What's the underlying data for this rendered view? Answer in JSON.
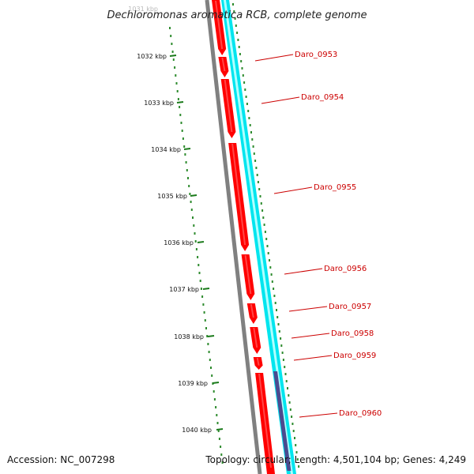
{
  "title": "Dechloromonas aromatica RCB, complete genome",
  "top_partial_label": "1031 kbp",
  "ruler_labels": [
    "1032 kbp",
    "1033 kbp",
    "1034 kbp",
    "1035 kbp",
    "1036 kbp",
    "1037 kbp",
    "1038 kbp",
    "1039 kbp",
    "1040 kbp"
  ],
  "genes": [
    "Daro_0953",
    "Daro_0954",
    "Daro_0955",
    "Daro_0956",
    "Daro_0957",
    "Daro_0958",
    "Daro_0959",
    "Daro_0960"
  ],
  "footer": {
    "accession": "Accession: NC_007298",
    "topology": "Topology: circular; Length: 4,501,104 bp; Genes: 4,249"
  },
  "colors": {
    "backbone": "#808080",
    "cds": "#ff0000",
    "cds_highlight": "#ff8080",
    "gene_track": "#00e5ee",
    "gene_track_light": "#b0ffff",
    "other_feature": "#4b4b8f",
    "ruler_dots": "#2e8b2e",
    "label_text": "#cc0000"
  }
}
